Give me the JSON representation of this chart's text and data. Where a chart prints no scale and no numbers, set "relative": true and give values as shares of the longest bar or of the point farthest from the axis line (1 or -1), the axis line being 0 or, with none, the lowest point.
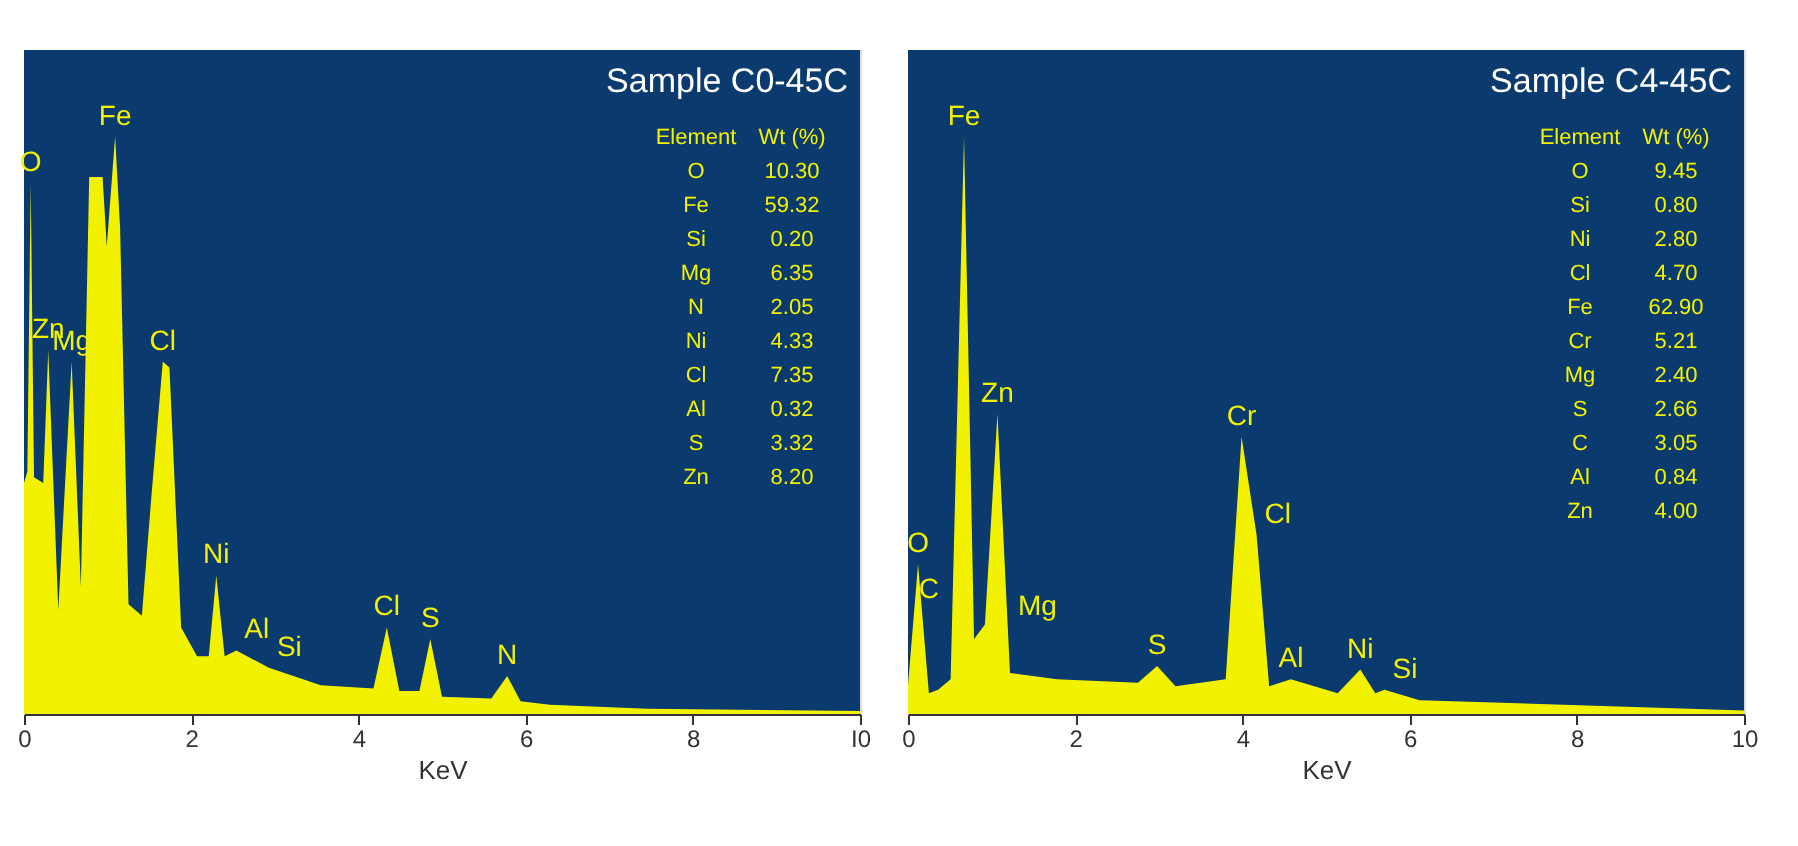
{
  "chart_data": [
    {
      "type": "area",
      "title": "Sample C0-45C",
      "xlabel": "KeV",
      "relative": true,
      "tick_labels": "x",
      "xlim": [
        0,
        10
      ],
      "xticks": [
        0,
        2,
        4,
        6,
        8,
        {
          "value": 10,
          "label": "I0"
        }
      ],
      "x": [
        0,
        0.04,
        0.08,
        0.12,
        0.23,
        0.29,
        0.41,
        0.57,
        0.68,
        0.78,
        0.94,
        0.99,
        1.09,
        1.15,
        1.25,
        1.41,
        1.52,
        1.66,
        1.74,
        1.88,
        2.07,
        2.21,
        2.3,
        2.4,
        2.54,
        2.93,
        3.55,
        4.18,
        4.34,
        4.49,
        4.73,
        4.86,
        5.0,
        5.59,
        5.78,
        5.94,
        6.29,
        7.46,
        10
      ],
      "series": [
        {
          "color": "#f2f200",
          "values": [
            0.4,
            0.42,
            0.92,
            0.41,
            0.4,
            0.63,
            0.18,
            0.61,
            0.22,
            0.93,
            0.93,
            0.81,
            1.0,
            0.84,
            0.19,
            0.17,
            0.37,
            0.61,
            0.6,
            0.15,
            0.1,
            0.1,
            0.24,
            0.1,
            0.11,
            0.08,
            0.05,
            0.044,
            0.15,
            0.04,
            0.04,
            0.13,
            0.03,
            0.027,
            0.066,
            0.022,
            0.016,
            0.009,
            0.005
          ]
        }
      ],
      "annotations": [
        {
          "text": "O",
          "x": 0.08,
          "y": 0.92
        },
        {
          "text": "Zn",
          "x": 0.29,
          "y": 0.63
        },
        {
          "text": "Mg",
          "x": 0.57,
          "y": 0.61
        },
        {
          "text": "Fe",
          "x": 1.09,
          "y": 1.0
        },
        {
          "text": "Cl",
          "x": 1.66,
          "y": 0.61
        },
        {
          "text": "Ni",
          "x": 2.3,
          "y": 0.24
        },
        {
          "text": "Al",
          "x": 2.54,
          "y": 0.11
        },
        {
          "text": "Si",
          "x": 2.93,
          "y": 0.08
        },
        {
          "text": "Cl",
          "x": 4.34,
          "y": 0.15
        },
        {
          "text": "S",
          "x": 4.86,
          "y": 0.13
        },
        {
          "text": "N",
          "x": 5.78,
          "y": 0.066
        },
        "Element",
        "Wt (%)",
        "O",
        "10.30",
        "Fe",
        "59.32",
        "Si",
        "0.20",
        "Mg",
        "6.35",
        "N",
        "2.05",
        "Ni",
        "4.33",
        "Cl",
        "7.35",
        "Al",
        "0.32",
        "S",
        "3.32",
        "Zn",
        "8.20"
      ]
    },
    {
      "type": "area",
      "title": "Sample C4-45C",
      "xlabel": "KeV",
      "relative": true,
      "tick_labels": "x",
      "xlim": [
        0,
        10
      ],
      "xticks": [
        0,
        2,
        4,
        6,
        8,
        10
      ],
      "x": [
        0,
        0.12,
        0.25,
        0.36,
        0.51,
        0.67,
        0.79,
        0.92,
        1.07,
        1.22,
        1.78,
        2.75,
        2.98,
        3.2,
        3.8,
        3.99,
        4.17,
        4.32,
        4.58,
        5.14,
        5.41,
        5.59,
        5.7,
        6.12,
        10
      ],
      "series": [
        {
          "color": "#f2f200",
          "values": [
            0.05,
            0.26,
            0.036,
            0.042,
            0.06,
            1.0,
            0.13,
            0.155,
            0.52,
            0.071,
            0.06,
            0.054,
            0.083,
            0.048,
            0.06,
            0.48,
            0.31,
            0.048,
            0.06,
            0.036,
            0.077,
            0.036,
            0.042,
            0.024,
            0.006
          ]
        }
      ],
      "annotations": [
        {
          "text": "O",
          "x": 0.12,
          "y": 0.26
        },
        {
          "text": "C",
          "x": 0.25,
          "y": 0.18
        },
        {
          "text": "Fe",
          "x": 0.67,
          "y": 1.0
        },
        {
          "text": "Zn",
          "x": 1.07,
          "y": 0.52
        },
        {
          "text": "Mg",
          "x": 1.22,
          "y": 0.15
        },
        {
          "text": "S",
          "x": 2.98,
          "y": 0.083
        },
        {
          "text": "Cr",
          "x": 3.99,
          "y": 0.48
        },
        {
          "text": "Cl",
          "x": 4.17,
          "y": 0.31
        },
        {
          "text": "Al",
          "x": 4.58,
          "y": 0.06
        },
        {
          "text": "Ni",
          "x": 5.41,
          "y": 0.077
        },
        {
          "text": "Si",
          "x": 5.7,
          "y": 0.042
        },
        "Element",
        "Wt (%)",
        "O",
        "9.45",
        "Si",
        "0.80",
        "Ni",
        "2.80",
        "Cl",
        "4.70",
        "Fe",
        "62.90",
        "Cr",
        "5.21",
        "Mg",
        "2.40",
        "S",
        "2.66",
        "C",
        "3.05",
        "Al",
        "0.84",
        "Zn",
        "4.00"
      ]
    }
  ]
}
